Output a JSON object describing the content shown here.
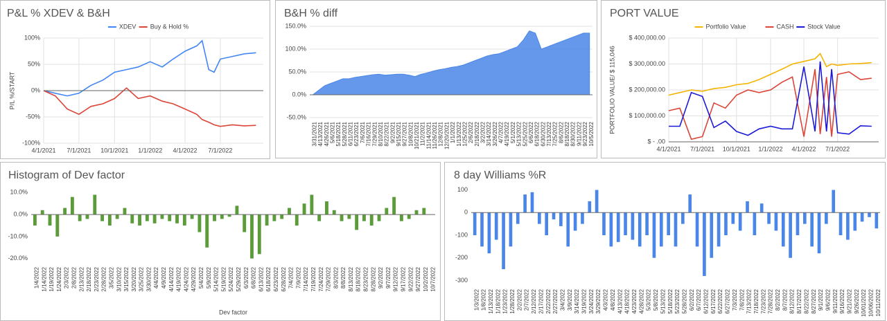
{
  "chart_data": [
    {
      "type": "line",
      "title": "P&L % XDEV & B&H",
      "y_label": "P/L %/START",
      "legend": "top",
      "grid": true,
      "x": [
        "4/1/2021",
        "5/1/2021",
        "6/1/2021",
        "7/1/2021",
        "8/1/2021",
        "9/1/2021",
        "10/1/2021",
        "11/1/2021",
        "12/1/2021",
        "1/1/2022",
        "2/1/2022",
        "3/1/2022",
        "4/1/2022",
        "5/1/2022",
        "5/15/2022",
        "6/1/2022",
        "6/15/2022",
        "7/1/2022",
        "8/1/2022",
        "9/1/2022",
        "10/1/2022"
      ],
      "xlim": [
        "4/1/2021",
        "10/20/2022"
      ],
      "xticks": [
        "4/1/2021",
        "7/1/2021",
        "10/1/2021",
        "1/1/2022",
        "4/1/2022",
        "7/1/2022"
      ],
      "ylim": [
        -100,
        100
      ],
      "yticks": [
        {
          "value": -100,
          "label": "-100%"
        },
        {
          "value": -50,
          "label": "-50%"
        },
        {
          "value": 0,
          "label": "0%"
        },
        {
          "value": 50,
          "label": "50%"
        },
        {
          "value": 100,
          "label": "100%"
        }
      ],
      "series": [
        {
          "name": "XDEV",
          "color": "#4285f4",
          "values": [
            0,
            -5,
            -10,
            -5,
            10,
            20,
            35,
            40,
            45,
            55,
            45,
            60,
            75,
            85,
            95,
            40,
            35,
            60,
            65,
            70,
            72
          ]
        },
        {
          "name": "Buy & Hold %",
          "color": "#db4437",
          "values": [
            0,
            -10,
            -35,
            -45,
            -30,
            -25,
            -15,
            5,
            -15,
            -10,
            -20,
            -25,
            -35,
            -45,
            -55,
            -60,
            -65,
            -68,
            -65,
            -67,
            -66
          ]
        }
      ]
    },
    {
      "type": "area",
      "title": "B&H % diff",
      "grid": true,
      "color": "#4a86e8",
      "categories": [
        "3/31/2021",
        "4/13/2021",
        "4/26/2021",
        "5/6/2021",
        "5/18/2021",
        "5/28/2021",
        "6/11/2021",
        "6/23/2021",
        "7/6/2021",
        "7/16/2021",
        "7/29/2021",
        "8/10/2021",
        "8/22/2021",
        "9/2/2021",
        "9/15/2021",
        "9/27/2021",
        "10/8/2021",
        "10/21/2021",
        "11/2/2021",
        "11/14/2021",
        "11/26/2021",
        "12/8/2021",
        "12/20/2021",
        "1/1/2022",
        "1/13/2022",
        "1/25/2022",
        "2/6/2022",
        "2/18/2022",
        "3/2/2022",
        "3/14/2022",
        "3/26/2022",
        "4/7/2022",
        "4/19/2022",
        "5/1/2022",
        "5/13/2022",
        "5/25/2022",
        "6/6/2022",
        "6/18/2022",
        "6/30/2022",
        "7/13/2022",
        "7/25/2022",
        "8/6/2022",
        "8/18/2022",
        "8/30/2022",
        "9/11/2022",
        "9/23/2022",
        "10/5/2022"
      ],
      "values": [
        0,
        10,
        20,
        25,
        30,
        35,
        35,
        38,
        40,
        42,
        44,
        45,
        43,
        44,
        45,
        45,
        43,
        40,
        45,
        48,
        52,
        55,
        57,
        60,
        62,
        65,
        70,
        75,
        80,
        85,
        88,
        90,
        95,
        100,
        105,
        120,
        140,
        135,
        100,
        105,
        110,
        115,
        120,
        125,
        130,
        135,
        135
      ],
      "ylim": [
        -50,
        150
      ],
      "yticks": [
        {
          "value": -50,
          "label": "-50.0%"
        },
        {
          "value": 0,
          "label": "0.0%"
        },
        {
          "value": 50,
          "label": "50.0%"
        },
        {
          "value": 100,
          "label": "100.0%"
        },
        {
          "value": 150,
          "label": "150.0%"
        }
      ]
    },
    {
      "type": "line",
      "title": "PORT VALUE",
      "y_label": "PORTFOLIO VALUE/ $ 115,046",
      "legend": "top",
      "grid": true,
      "x": [
        "4/1/2021",
        "5/1/2021",
        "6/1/2021",
        "7/1/2021",
        "8/1/2021",
        "9/1/2021",
        "10/1/2021",
        "11/1/2021",
        "12/1/2021",
        "1/1/2022",
        "2/1/2022",
        "3/1/2022",
        "4/1/2022",
        "5/1/2022",
        "5/15/2022",
        "6/1/2022",
        "6/15/2022",
        "7/1/2022",
        "8/1/2022",
        "9/1/2022",
        "10/1/2022"
      ],
      "xlim": [
        "4/1/2021",
        "10/20/2022"
      ],
      "xticks": [
        "4/1/2021",
        "7/1/2021",
        "10/1/2021",
        "1/1/2022",
        "4/1/2022",
        "7/1/2022"
      ],
      "ylim": [
        0,
        400000
      ],
      "yticks": [
        {
          "value": 0,
          "label": "$ -  .00"
        },
        {
          "value": 100000,
          "label": "$ 100,000.00"
        },
        {
          "value": 200000,
          "label": "$ 200,000.00"
        },
        {
          "value": 300000,
          "label": "$ 300,000.00"
        },
        {
          "value": 400000,
          "label": "$ 400,000.00"
        }
      ],
      "series": [
        {
          "name": "Portfolio Value",
          "color": "#f4b400",
          "values": [
            180000,
            190000,
            200000,
            195000,
            205000,
            210000,
            220000,
            225000,
            240000,
            260000,
            280000,
            300000,
            310000,
            320000,
            340000,
            290000,
            300000,
            295000,
            300000,
            302000,
            305000
          ]
        },
        {
          "name": "CASH",
          "color": "#db4437",
          "values": [
            120000,
            130000,
            10000,
            20000,
            150000,
            130000,
            180000,
            200000,
            190000,
            200000,
            230000,
            250000,
            20000,
            280000,
            30000,
            250000,
            20000,
            260000,
            270000,
            240000,
            245000
          ]
        },
        {
          "name": "Stock Value",
          "color": "#1a1ad6",
          "values": [
            60000,
            60000,
            190000,
            175000,
            55000,
            80000,
            40000,
            25000,
            50000,
            60000,
            50000,
            50000,
            290000,
            40000,
            310000,
            40000,
            280000,
            35000,
            30000,
            62000,
            60000
          ]
        }
      ]
    },
    {
      "type": "bar",
      "title": "Histogram of Dev factor",
      "x_label": "Dev factor",
      "grid": false,
      "color": "#5b9b3a",
      "categories": [
        "1/4/2022",
        "1/14/2022",
        "1/19/2022",
        "1/24/2022",
        "2/3/2022",
        "2/8/2022",
        "2/13/2022",
        "2/18/2022",
        "2/23/2022",
        "2/28/2022",
        "3/5/2022",
        "3/10/2022",
        "3/15/2022",
        "3/20/2022",
        "3/25/2022",
        "3/30/2022",
        "4/4/2022",
        "4/9/2022",
        "4/14/2022",
        "4/19/2022",
        "4/24/2022",
        "4/29/2022",
        "5/4/2022",
        "5/9/2022",
        "5/14/2022",
        "5/19/2022",
        "5/24/2022",
        "5/29/2022",
        "6/3/2022",
        "6/8/2022",
        "6/13/2022",
        "6/18/2022",
        "6/23/2022",
        "6/28/2022",
        "7/4/2022",
        "7/9/2022",
        "7/14/2022",
        "7/19/2022",
        "7/24/2022",
        "7/29/2022",
        "8/3/2022",
        "8/8/2022",
        "8/13/2022",
        "8/18/2022",
        "8/23/2022",
        "8/28/2022",
        "9/2/2022",
        "9/7/2022",
        "9/12/2022",
        "9/17/2022",
        "9/22/2022",
        "9/27/2022",
        "10/2/2022",
        "10/7/2022"
      ],
      "values": [
        -5,
        2,
        -5,
        -10,
        3,
        8,
        -3,
        -2,
        9,
        -3,
        -5,
        -2,
        3,
        -4,
        -5,
        -3,
        -4,
        -2,
        -3,
        -4,
        -5,
        -2,
        -8,
        -15,
        -3,
        -2,
        -1,
        4,
        -8,
        -20,
        -18,
        -5,
        -3,
        -2,
        3,
        -5,
        5,
        9,
        -3,
        6,
        2,
        -3,
        -2,
        -7,
        -3,
        -5,
        -3,
        3,
        8,
        -3,
        -2,
        2,
        3,
        0
      ],
      "ylim": [
        -22,
        12
      ],
      "yticks": [
        {
          "value": -20,
          "label": "-20.0%"
        },
        {
          "value": -10,
          "label": "-10.0%"
        },
        {
          "value": 0,
          "label": "0.0%"
        },
        {
          "value": 10,
          "label": "10.0%"
        }
      ]
    },
    {
      "type": "bar",
      "title": "8 day Williams %R",
      "grid": false,
      "color": "#4a86e8",
      "categories": [
        "1/3/2022",
        "1/8/2022",
        "1/13/2022",
        "1/18/2022",
        "1/23/2022",
        "1/28/2022",
        "2/2/2022",
        "2/7/2022",
        "2/12/2022",
        "2/17/2022",
        "2/22/2022",
        "2/27/2022",
        "3/4/2022",
        "3/9/2022",
        "3/14/2022",
        "3/19/2022",
        "3/24/2022",
        "3/29/2022",
        "4/3/2022",
        "4/8/2022",
        "4/13/2022",
        "4/18/2022",
        "4/23/2022",
        "4/28/2022",
        "5/3/2022",
        "5/8/2022",
        "5/13/2022",
        "5/18/2022",
        "5/23/2022",
        "5/28/2022",
        "6/2/2022",
        "6/7/2022",
        "6/12/2022",
        "6/17/2022",
        "6/22/2022",
        "6/27/2022",
        "7/3/2022",
        "7/8/2022",
        "7/13/2022",
        "7/18/2022",
        "7/23/2022",
        "7/28/2022",
        "8/2/2022",
        "8/7/2022",
        "8/12/2022",
        "8/17/2022",
        "8/22/2022",
        "8/27/2022",
        "9/1/2022",
        "9/6/2022",
        "9/11/2022",
        "9/16/2022",
        "9/21/2022",
        "9/26/2022",
        "10/01/2022",
        "10/06/2022",
        "10/11/2022"
      ],
      "values": [
        -100,
        -150,
        -180,
        -120,
        -250,
        -150,
        -50,
        80,
        90,
        -50,
        -100,
        -30,
        -60,
        -150,
        -80,
        -50,
        50,
        100,
        -100,
        -150,
        -130,
        -100,
        -120,
        -150,
        -100,
        -200,
        -150,
        -100,
        -150,
        -50,
        80,
        -150,
        -280,
        -200,
        -150,
        -100,
        -50,
        -80,
        50,
        -100,
        40,
        -50,
        -80,
        -150,
        -200,
        -100,
        -50,
        -150,
        -180,
        -50,
        100,
        -100,
        -120,
        -80,
        -40,
        -20,
        -70
      ],
      "ylim": [
        -320,
        120
      ],
      "yticks": [
        -300,
        -200,
        -100,
        0,
        100
      ]
    }
  ]
}
